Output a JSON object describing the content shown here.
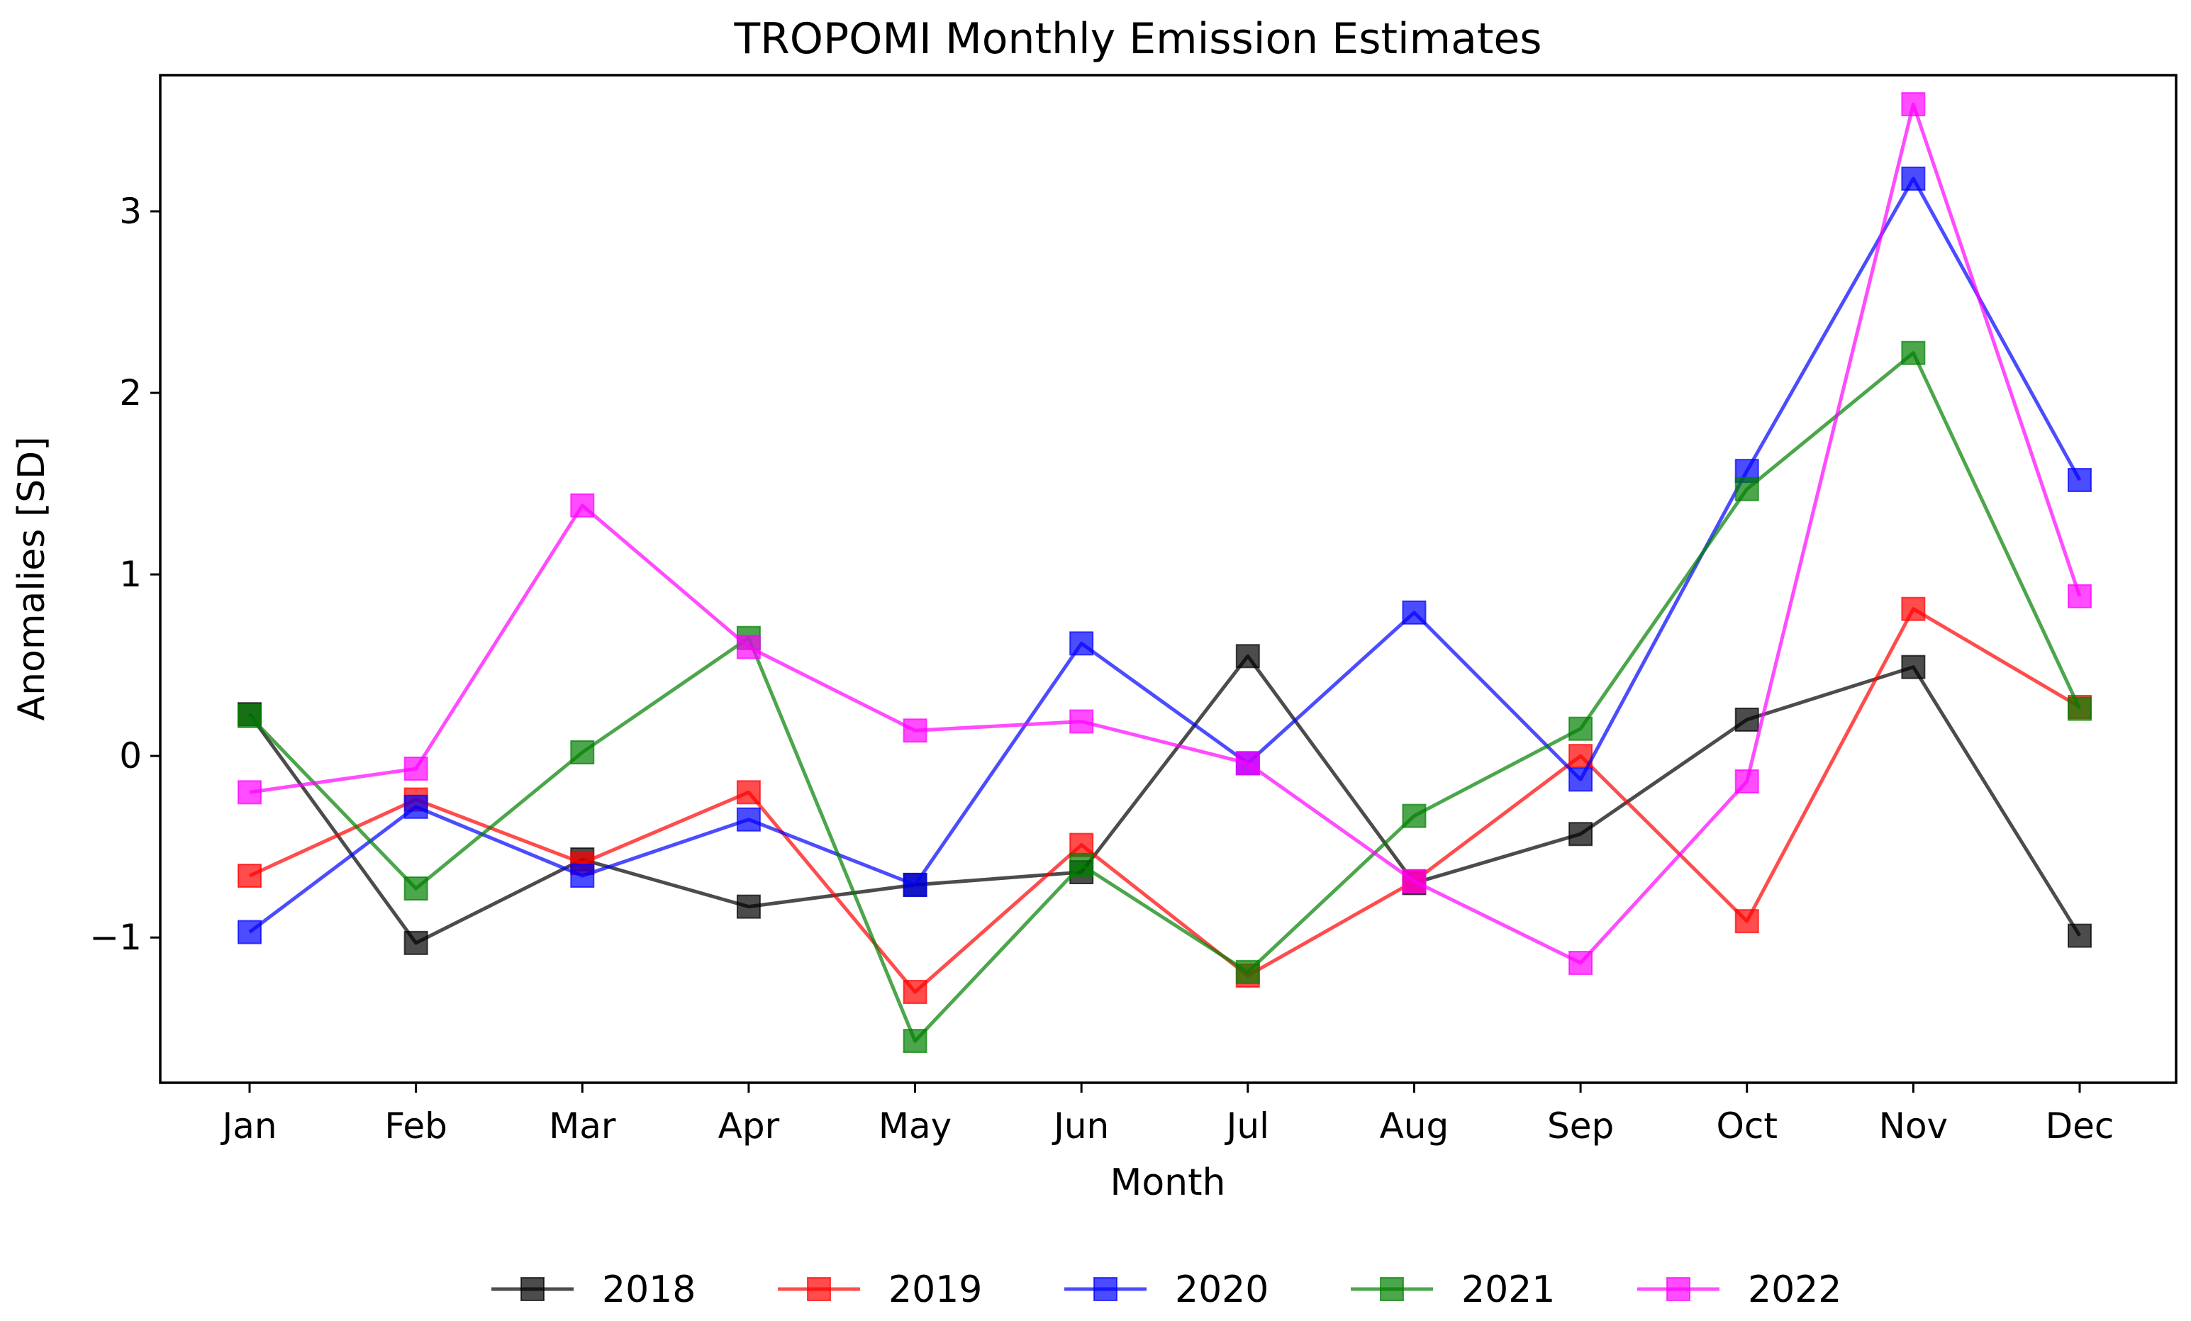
{
  "chart_data": {
    "type": "line",
    "title": "TROPOMI Monthly Emission Estimates",
    "xlabel": "Month",
    "ylabel": "Anomalies [SD]",
    "categories": [
      "Jan",
      "Feb",
      "Mar",
      "Apr",
      "May",
      "Jun",
      "Jul",
      "Aug",
      "Sep",
      "Oct",
      "Nov",
      "Dec"
    ],
    "ylim": [
      -1.8,
      3.75
    ],
    "yticks": [
      -1,
      0,
      1,
      2,
      3
    ],
    "ytick_labels": [
      "−1",
      "0",
      "1",
      "2",
      "3"
    ],
    "grid": false,
    "legend_position": "bottom-center",
    "series": [
      {
        "name": "2018",
        "color": "#000000",
        "values": [
          0.23,
          -1.03,
          -0.57,
          -0.83,
          -0.71,
          -0.64,
          0.55,
          -0.7,
          -0.43,
          0.2,
          0.49,
          -0.99
        ]
      },
      {
        "name": "2019",
        "color": "#ff0000",
        "values": [
          -0.66,
          -0.24,
          -0.59,
          -0.2,
          -1.3,
          -0.49,
          -1.21,
          -0.69,
          0.0,
          -0.91,
          0.81,
          0.27
        ]
      },
      {
        "name": "2020",
        "color": "#0000ff",
        "values": [
          -0.97,
          -0.28,
          -0.66,
          -0.35,
          -0.71,
          0.62,
          -0.04,
          0.79,
          -0.13,
          1.57,
          3.18,
          1.52
        ]
      },
      {
        "name": "2021",
        "color": "#008000",
        "values": [
          0.22,
          -0.73,
          0.02,
          0.65,
          -1.57,
          -0.6,
          -1.19,
          -0.33,
          0.15,
          1.47,
          2.22,
          0.26
        ]
      },
      {
        "name": "2022",
        "color": "#ff00ff",
        "values": [
          -0.2,
          -0.07,
          1.38,
          0.6,
          0.14,
          0.19,
          -0.04,
          -0.69,
          -1.14,
          -0.14,
          3.59,
          0.88
        ]
      }
    ]
  }
}
